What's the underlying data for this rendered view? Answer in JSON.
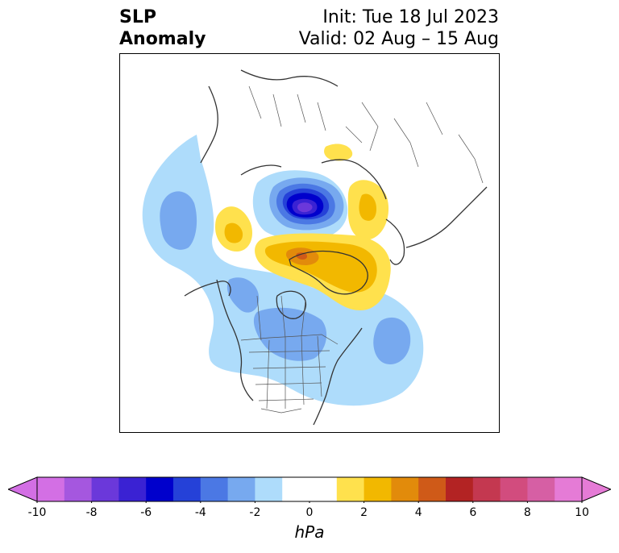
{
  "title": {
    "left_line1": "SLP",
    "left_line2": "Anomaly",
    "right_line1": "Init: Tue 18 Jul 2023",
    "right_line2": "Valid: 02 Aug – 15 Aug"
  },
  "colorbar": {
    "unit": "hPa",
    "ticks": [
      "-10",
      "-8",
      "-6",
      "-4",
      "-2",
      "0",
      "2",
      "4",
      "6",
      "8",
      "10"
    ],
    "colors": [
      "#d36fe4",
      "#a557df",
      "#6b38da",
      "#3a22d3",
      "#0000cc",
      "#2541d8",
      "#4b78e4",
      "#77a9ef",
      "#aedcfb",
      "#ffffff",
      "#ffffff",
      "#ffe14d",
      "#f2b800",
      "#e28b0b",
      "#cf5a18",
      "#b32323",
      "#c43850",
      "#d24c7e",
      "#d65fa4",
      "#e57bd6"
    ],
    "extend_low_color": "#d36fe4",
    "extend_high_color": "#e57bd6"
  },
  "map": {
    "projection": "north-polar-stereographic",
    "region": "North America / Arctic",
    "features": [
      "coastlines",
      "country borders",
      "US state borders",
      "Canadian province borders"
    ],
    "anomaly_centers": [
      {
        "name": "arctic-low",
        "sign": "negative",
        "peak_hpa": -7
      },
      {
        "name": "greenland-high",
        "sign": "positive",
        "peak_hpa": 5
      },
      {
        "name": "siberia-high",
        "sign": "positive",
        "peak_hpa": 2
      },
      {
        "name": "north-pacific-low",
        "sign": "negative",
        "peak_hpa": -3
      },
      {
        "name": "central-canada-low",
        "sign": "negative",
        "peak_hpa": -3
      },
      {
        "name": "north-atlantic-low",
        "sign": "negative",
        "peak_hpa": -3
      }
    ]
  }
}
